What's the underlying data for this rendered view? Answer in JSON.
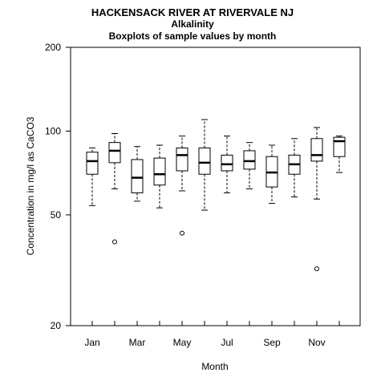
{
  "chart_data": {
    "type": "boxplot",
    "title": "HACKENSACK RIVER AT RIVERVALE NJ",
    "subtitle": "Alkalinity",
    "subtitle2": "Boxplots of sample values by month",
    "xlabel": "Month",
    "ylabel": "Concentration in mg/l as CaCO3",
    "y_scale": "log",
    "ylim": [
      20,
      200
    ],
    "y_ticks": [
      20,
      50,
      100,
      200
    ],
    "x_tick_labels": [
      "Jan",
      "Mar",
      "May",
      "Jul",
      "Sep",
      "Nov"
    ],
    "grid": false,
    "months": [
      "Jan",
      "Feb",
      "Mar",
      "Apr",
      "May",
      "Jun",
      "Jul",
      "Aug",
      "Sep",
      "Oct",
      "Nov",
      "Dec"
    ],
    "series": [
      {
        "month": "Jan",
        "whisker_low": 54,
        "q1": 70,
        "median": 78,
        "q3": 84,
        "whisker_high": 87,
        "outliers": []
      },
      {
        "month": "Feb",
        "whisker_low": 62,
        "q1": 77,
        "median": 85,
        "q3": 91,
        "whisker_high": 98,
        "outliers": [
          40
        ]
      },
      {
        "month": "Mar",
        "whisker_low": 56,
        "q1": 60,
        "median": 68,
        "q3": 79,
        "whisker_high": 88,
        "outliers": []
      },
      {
        "month": "Apr",
        "whisker_low": 53,
        "q1": 64,
        "median": 70,
        "q3": 80,
        "whisker_high": 89,
        "outliers": []
      },
      {
        "month": "May",
        "whisker_low": 61,
        "q1": 72,
        "median": 82,
        "q3": 87,
        "whisker_high": 96,
        "outliers": [
          43
        ]
      },
      {
        "month": "Jun",
        "whisker_low": 52,
        "q1": 70,
        "median": 77,
        "q3": 87,
        "whisker_high": 110,
        "outliers": []
      },
      {
        "month": "Jul",
        "whisker_low": 60,
        "q1": 72,
        "median": 76,
        "q3": 82,
        "whisker_high": 96,
        "outliers": []
      },
      {
        "month": "Aug",
        "whisker_low": 62,
        "q1": 73,
        "median": 78,
        "q3": 85,
        "whisker_high": 91,
        "outliers": []
      },
      {
        "month": "Sep",
        "whisker_low": 55,
        "q1": 63,
        "median": 71,
        "q3": 81,
        "whisker_high": 89,
        "outliers": []
      },
      {
        "month": "Oct",
        "whisker_low": 58,
        "q1": 70,
        "median": 76,
        "q3": 82,
        "whisker_high": 94,
        "outliers": []
      },
      {
        "month": "Nov",
        "whisker_low": 57,
        "q1": 78,
        "median": 82,
        "q3": 94,
        "whisker_high": 103,
        "outliers": [
          32
        ]
      },
      {
        "month": "Dec",
        "whisker_low": 71,
        "q1": 81,
        "median": 92,
        "q3": 95,
        "whisker_high": 96,
        "outliers": []
      }
    ]
  }
}
